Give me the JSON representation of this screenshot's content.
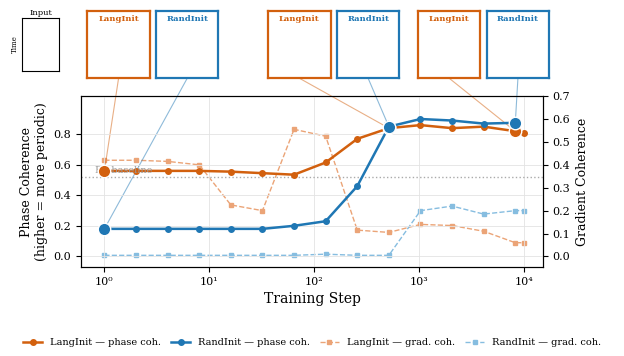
{
  "chart_data": {
    "type": "line",
    "x_label": "Training Step",
    "y_label": "Phase Coherence\n(higher = more periodic)",
    "y2_label": "Gradient Coherence",
    "log": "x",
    "grid": true,
    "legend": "lower center",
    "xlim": [
      0.6,
      15000
    ],
    "xticks": [
      {
        "value": 1,
        "label": "10⁰"
      },
      {
        "value": 10,
        "label": "10¹"
      },
      {
        "value": 100,
        "label": "10²"
      },
      {
        "value": 1000,
        "label": "10³"
      },
      {
        "value": 10000,
        "label": "10⁴"
      }
    ],
    "ylim": [
      -0.07,
      1.05
    ],
    "yticks": [
      {
        "value": 0,
        "label": "0.0"
      },
      0.2,
      0.4,
      0.6,
      0.8
    ],
    "y2lim": [
      -0.046,
      0.7
    ],
    "y2ticks": [
      {
        "value": 0,
        "label": "0.0"
      },
      0.1,
      0.2,
      0.3,
      0.4,
      0.5,
      0.6,
      0.7
    ],
    "series": [
      {
        "name": "LangInit — phase coh.",
        "color": "#d2600e",
        "marker": "circle",
        "line_style": "solid",
        "x": [
          1,
          2,
          4,
          8,
          16,
          32,
          64,
          128,
          256,
          512,
          1024,
          2048,
          4096,
          8192,
          10000
        ],
        "values": [
          0.56,
          0.56,
          0.56,
          0.56,
          0.555,
          0.545,
          0.535,
          0.615,
          0.77,
          0.84,
          0.86,
          0.84,
          0.85,
          0.82,
          0.81
        ]
      },
      {
        "name": "RandInit — phase coh.",
        "color": "#1f77b4",
        "marker": "circle",
        "line_style": "solid",
        "x": [
          1,
          2,
          4,
          8,
          16,
          32,
          64,
          128,
          256,
          512,
          1024,
          2048,
          4096,
          8192
        ],
        "values": [
          0.18,
          0.18,
          0.18,
          0.18,
          0.18,
          0.18,
          0.2,
          0.23,
          0.46,
          0.85,
          0.9,
          0.89,
          0.87,
          0.875
        ]
      },
      {
        "name": "LangInit — grad. coh.",
        "color": "#eba477",
        "marker": "square",
        "line_style": "dashed",
        "axis": "y2",
        "x": [
          1,
          2,
          4,
          8,
          16,
          32,
          64,
          128,
          256,
          512,
          1024,
          2048,
          4096,
          8192,
          10000
        ],
        "values": [
          0.42,
          0.42,
          0.415,
          0.4,
          0.225,
          0.2,
          0.555,
          0.525,
          0.115,
          0.105,
          0.14,
          0.135,
          0.11,
          0.06,
          0.06
        ]
      },
      {
        "name": "RandInit — grad. coh.",
        "color": "#86bde0",
        "marker": "square",
        "line_style": "dashed",
        "axis": "y2",
        "x": [
          1,
          2,
          4,
          8,
          16,
          32,
          64,
          128,
          256,
          512,
          1024,
          2048,
          4096,
          8192,
          10000
        ],
        "values": [
          0.005,
          0.005,
          0.005,
          0.005,
          0.005,
          0.005,
          0.005,
          0.01,
          0.005,
          0.005,
          0.2,
          0.22,
          0.185,
          0.2,
          0.2
        ]
      }
    ],
    "reference_line": {
      "value": 0.52,
      "label": "PT baseline"
    },
    "insets": {
      "input": {
        "title": "Input",
        "y_label": "Time"
      },
      "panel_titles": [
        "LangInit",
        "RandInit"
      ],
      "snapshots": [
        {
          "step": 1
        },
        {
          "step": 512
        },
        {
          "step": 8192
        }
      ]
    }
  }
}
